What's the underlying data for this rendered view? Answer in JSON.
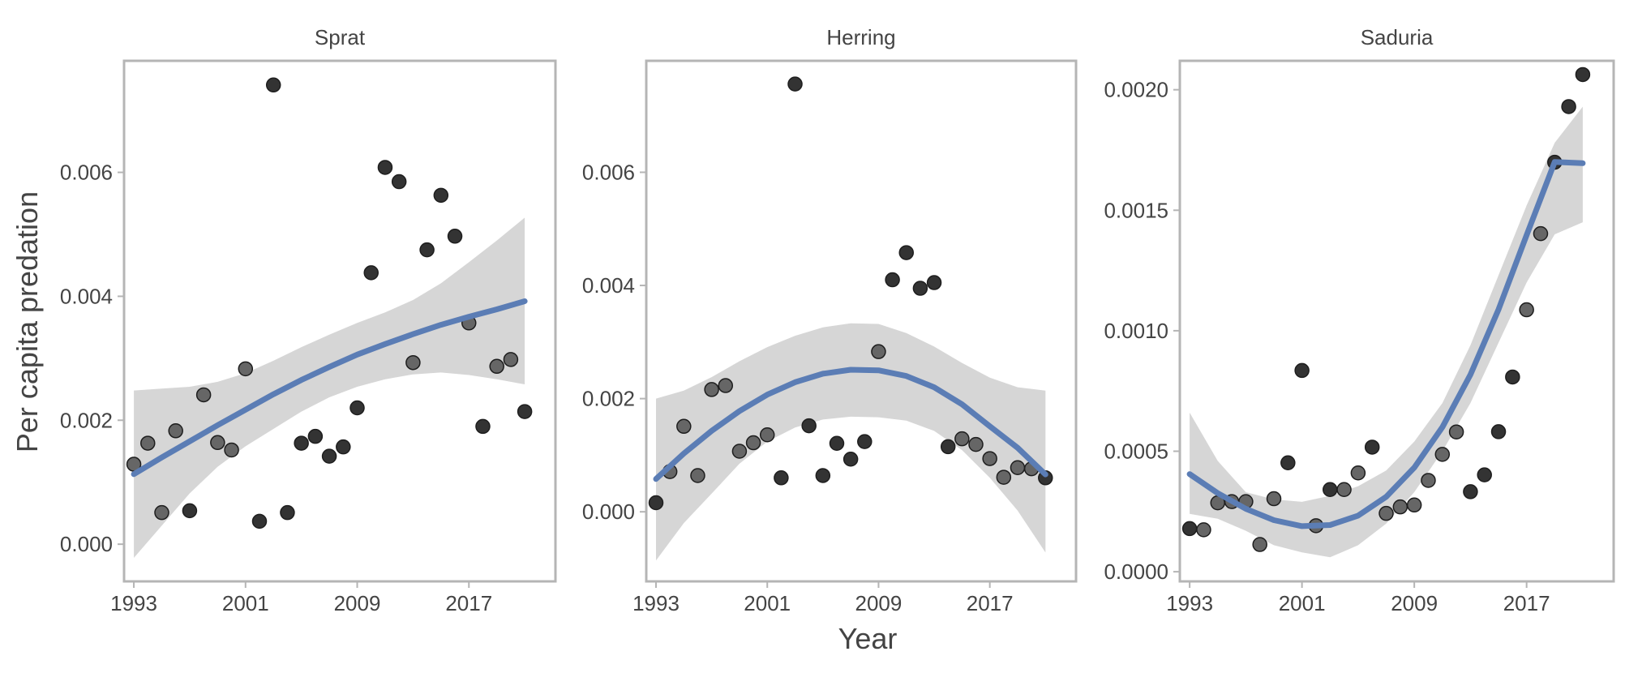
{
  "figure": {
    "ylabel": "Per capita predation",
    "xlabel": "Year"
  },
  "style": {
    "point_color": "#333333",
    "point_alpha_light": "#666666",
    "line_color": "#5b7db5",
    "band_color": "#d6d6d6",
    "frame_color": "#b5b5b5",
    "text_color": "#444444"
  },
  "chart_data": [
    {
      "type": "scatter",
      "title": "Sprat",
      "xlim": [
        1992.3,
        2023.2
      ],
      "ylim": [
        -0.0006,
        0.0078
      ],
      "xticks": [
        1993,
        2001,
        2009,
        2017
      ],
      "yticks": [
        0.0,
        0.002,
        0.004,
        0.006
      ],
      "ytick_labels": [
        "0.000",
        "0.002",
        "0.004",
        "0.006"
      ],
      "points": [
        {
          "x": 1993,
          "y": 0.00129,
          "shade": "light"
        },
        {
          "x": 1994,
          "y": 0.00163,
          "shade": "light"
        },
        {
          "x": 1995,
          "y": 0.00051,
          "shade": "light"
        },
        {
          "x": 1996,
          "y": 0.00183,
          "shade": "light"
        },
        {
          "x": 1997,
          "y": 0.00054,
          "shade": "dark"
        },
        {
          "x": 1998,
          "y": 0.00241,
          "shade": "light"
        },
        {
          "x": 1999,
          "y": 0.00164,
          "shade": "light"
        },
        {
          "x": 2000,
          "y": 0.00152,
          "shade": "light"
        },
        {
          "x": 2001,
          "y": 0.00283,
          "shade": "light"
        },
        {
          "x": 2002,
          "y": 0.00037,
          "shade": "dark"
        },
        {
          "x": 2003,
          "y": 0.00741,
          "shade": "dark"
        },
        {
          "x": 2004,
          "y": 0.00051,
          "shade": "dark"
        },
        {
          "x": 2005,
          "y": 0.00163,
          "shade": "dark"
        },
        {
          "x": 2006,
          "y": 0.00174,
          "shade": "dark"
        },
        {
          "x": 2007,
          "y": 0.00142,
          "shade": "dark"
        },
        {
          "x": 2008,
          "y": 0.00157,
          "shade": "dark"
        },
        {
          "x": 2009,
          "y": 0.0022,
          "shade": "dark"
        },
        {
          "x": 2010,
          "y": 0.00438,
          "shade": "dark"
        },
        {
          "x": 2011,
          "y": 0.00608,
          "shade": "dark"
        },
        {
          "x": 2012,
          "y": 0.00585,
          "shade": "dark"
        },
        {
          "x": 2013,
          "y": 0.00293,
          "shade": "light"
        },
        {
          "x": 2014,
          "y": 0.00475,
          "shade": "dark"
        },
        {
          "x": 2015,
          "y": 0.00563,
          "shade": "dark"
        },
        {
          "x": 2016,
          "y": 0.00497,
          "shade": "dark"
        },
        {
          "x": 2017,
          "y": 0.00357,
          "shade": "light"
        },
        {
          "x": 2018,
          "y": 0.0019,
          "shade": "dark"
        },
        {
          "x": 2019,
          "y": 0.00287,
          "shade": "light"
        },
        {
          "x": 2020,
          "y": 0.00298,
          "shade": "light"
        },
        {
          "x": 2021,
          "y": 0.00214,
          "shade": "dark"
        }
      ],
      "fit": {
        "x": [
          1993,
          1995,
          1997,
          1999,
          2001,
          2003,
          2005,
          2007,
          2009,
          2011,
          2013,
          2015,
          2017,
          2019,
          2021
        ],
        "y": [
          0.00113,
          0.0014,
          0.00166,
          0.00192,
          0.00217,
          0.00242,
          0.00265,
          0.00286,
          0.00306,
          0.00323,
          0.00339,
          0.00354,
          0.00367,
          0.00379,
          0.00392
        ],
        "lower": [
          -0.00022,
          0.0003,
          0.00082,
          0.00125,
          0.00158,
          0.00186,
          0.00214,
          0.00237,
          0.00254,
          0.00266,
          0.00274,
          0.00277,
          0.00273,
          0.00266,
          0.00258
        ],
        "upper": [
          0.00248,
          0.00251,
          0.00254,
          0.00262,
          0.00276,
          0.00296,
          0.00318,
          0.00338,
          0.00357,
          0.00374,
          0.00394,
          0.00421,
          0.00455,
          0.0049,
          0.00527
        ]
      }
    },
    {
      "type": "scatter",
      "title": "Herring",
      "xlim": [
        1992.3,
        2023.2
      ],
      "ylim": [
        -0.00123,
        0.00797
      ],
      "xticks": [
        1993,
        2001,
        2009,
        2017
      ],
      "yticks": [
        0.0,
        0.002,
        0.004,
        0.006
      ],
      "ytick_labels": [
        "0.000",
        "0.002",
        "0.004",
        "0.006"
      ],
      "points": [
        {
          "x": 1993,
          "y": 0.00016,
          "shade": "dark"
        },
        {
          "x": 1994,
          "y": 0.00071,
          "shade": "light"
        },
        {
          "x": 1995,
          "y": 0.00151,
          "shade": "light"
        },
        {
          "x": 1996,
          "y": 0.00064,
          "shade": "light"
        },
        {
          "x": 1997,
          "y": 0.00216,
          "shade": "light"
        },
        {
          "x": 1998,
          "y": 0.00223,
          "shade": "light"
        },
        {
          "x": 1999,
          "y": 0.00107,
          "shade": "light"
        },
        {
          "x": 2000,
          "y": 0.00122,
          "shade": "light"
        },
        {
          "x": 2001,
          "y": 0.00136,
          "shade": "light"
        },
        {
          "x": 2002,
          "y": 0.0006,
          "shade": "dark"
        },
        {
          "x": 2003,
          "y": 0.00756,
          "shade": "dark"
        },
        {
          "x": 2004,
          "y": 0.00152,
          "shade": "dark"
        },
        {
          "x": 2005,
          "y": 0.00064,
          "shade": "dark"
        },
        {
          "x": 2006,
          "y": 0.00121,
          "shade": "dark"
        },
        {
          "x": 2007,
          "y": 0.00093,
          "shade": "dark"
        },
        {
          "x": 2008,
          "y": 0.00124,
          "shade": "dark"
        },
        {
          "x": 2009,
          "y": 0.00283,
          "shade": "light"
        },
        {
          "x": 2010,
          "y": 0.0041,
          "shade": "dark"
        },
        {
          "x": 2011,
          "y": 0.00458,
          "shade": "dark"
        },
        {
          "x": 2012,
          "y": 0.00395,
          "shade": "dark"
        },
        {
          "x": 2013,
          "y": 0.00405,
          "shade": "dark"
        },
        {
          "x": 2014,
          "y": 0.00115,
          "shade": "dark"
        },
        {
          "x": 2015,
          "y": 0.00129,
          "shade": "light"
        },
        {
          "x": 2016,
          "y": 0.00119,
          "shade": "light"
        },
        {
          "x": 2017,
          "y": 0.00094,
          "shade": "light"
        },
        {
          "x": 2018,
          "y": 0.00061,
          "shade": "light"
        },
        {
          "x": 2019,
          "y": 0.00078,
          "shade": "light"
        },
        {
          "x": 2020,
          "y": 0.00076,
          "shade": "light"
        },
        {
          "x": 2021,
          "y": 0.0006,
          "shade": "dark"
        }
      ],
      "fit": {
        "x": [
          1993,
          1995,
          1997,
          1999,
          2001,
          2003,
          2005,
          2007,
          2009,
          2011,
          2013,
          2015,
          2017,
          2019,
          2021
        ],
        "y": [
          0.00058,
          0.00103,
          0.00143,
          0.00178,
          0.00207,
          0.00229,
          0.00244,
          0.00251,
          0.0025,
          0.0024,
          0.0022,
          0.0019,
          0.00151,
          0.00113,
          0.00066
        ],
        "lower": [
          -0.00086,
          -0.0002,
          0.00032,
          0.00085,
          0.00124,
          0.00149,
          0.00163,
          0.00168,
          0.00167,
          0.00161,
          0.00143,
          0.00109,
          0.0006,
          2e-05,
          -0.00072
        ],
        "upper": [
          0.002,
          0.00214,
          0.00238,
          0.00266,
          0.00291,
          0.00311,
          0.00326,
          0.00333,
          0.00332,
          0.00316,
          0.00292,
          0.00263,
          0.00237,
          0.0022,
          0.00214
        ]
      }
    },
    {
      "type": "scatter",
      "title": "Saduria",
      "xlim": [
        1992.3,
        2023.2
      ],
      "ylim": [
        -4e-05,
        0.00212
      ],
      "xticks": [
        1993,
        2001,
        2009,
        2017
      ],
      "yticks": [
        0.0,
        0.0005,
        0.001,
        0.0015,
        0.002
      ],
      "ytick_labels": [
        "0.0000",
        "0.0005",
        "0.0010",
        "0.0015",
        "0.0020"
      ],
      "points": [
        {
          "x": 1993,
          "y": 0.000179,
          "shade": "dark"
        },
        {
          "x": 1994,
          "y": 0.000174,
          "shade": "light"
        },
        {
          "x": 1995,
          "y": 0.000286,
          "shade": "light"
        },
        {
          "x": 1996,
          "y": 0.000291,
          "shade": "light"
        },
        {
          "x": 1997,
          "y": 0.000291,
          "shade": "light"
        },
        {
          "x": 1998,
          "y": 0.000113,
          "shade": "light"
        },
        {
          "x": 1999,
          "y": 0.000303,
          "shade": "light"
        },
        {
          "x": 2000,
          "y": 0.000452,
          "shade": "dark"
        },
        {
          "x": 2001,
          "y": 0.000835,
          "shade": "dark"
        },
        {
          "x": 2002,
          "y": 0.000191,
          "shade": "light"
        },
        {
          "x": 2003,
          "y": 0.000341,
          "shade": "dark"
        },
        {
          "x": 2004,
          "y": 0.000341,
          "shade": "light"
        },
        {
          "x": 2005,
          "y": 0.00041,
          "shade": "light"
        },
        {
          "x": 2006,
          "y": 0.000517,
          "shade": "dark"
        },
        {
          "x": 2007,
          "y": 0.000242,
          "shade": "light"
        },
        {
          "x": 2008,
          "y": 0.000269,
          "shade": "light"
        },
        {
          "x": 2009,
          "y": 0.000277,
          "shade": "light"
        },
        {
          "x": 2010,
          "y": 0.000379,
          "shade": "light"
        },
        {
          "x": 2011,
          "y": 0.000487,
          "shade": "light"
        },
        {
          "x": 2012,
          "y": 0.00058,
          "shade": "light"
        },
        {
          "x": 2013,
          "y": 0.000332,
          "shade": "dark"
        },
        {
          "x": 2014,
          "y": 0.000402,
          "shade": "dark"
        },
        {
          "x": 2015,
          "y": 0.000581,
          "shade": "dark"
        },
        {
          "x": 2016,
          "y": 0.000808,
          "shade": "dark"
        },
        {
          "x": 2017,
          "y": 0.001087,
          "shade": "light"
        },
        {
          "x": 2018,
          "y": 0.001403,
          "shade": "light"
        },
        {
          "x": 2019,
          "y": 0.001699,
          "shade": "dark"
        },
        {
          "x": 2020,
          "y": 0.00193,
          "shade": "dark"
        },
        {
          "x": 2021,
          "y": 0.002063,
          "shade": "dark"
        }
      ],
      "fit": {
        "x": [
          1993,
          1995,
          1997,
          1999,
          2001,
          2003,
          2005,
          2007,
          2009,
          2011,
          2013,
          2015,
          2017,
          2019,
          2021
        ],
        "y": [
          0.000405,
          0.000326,
          0.000261,
          0.000214,
          0.000189,
          0.000194,
          0.000233,
          0.000311,
          0.000432,
          0.0006,
          0.000818,
          0.001088,
          0.001397,
          0.0017,
          0.001695
        ],
        "lower": [
          0.00024,
          0.00022,
          0.00017,
          0.00011,
          8e-05,
          6e-05,
          0.00011,
          0.0002,
          0.00033,
          0.0005,
          0.0007,
          0.00095,
          0.0012,
          0.0014,
          0.00145
        ],
        "upper": [
          0.00066,
          0.00046,
          0.00033,
          0.0003,
          0.00029,
          0.000315,
          0.000355,
          0.00042,
          0.00054,
          0.0007,
          0.00094,
          0.00123,
          0.00152,
          0.00178,
          0.00193
        ]
      }
    }
  ]
}
